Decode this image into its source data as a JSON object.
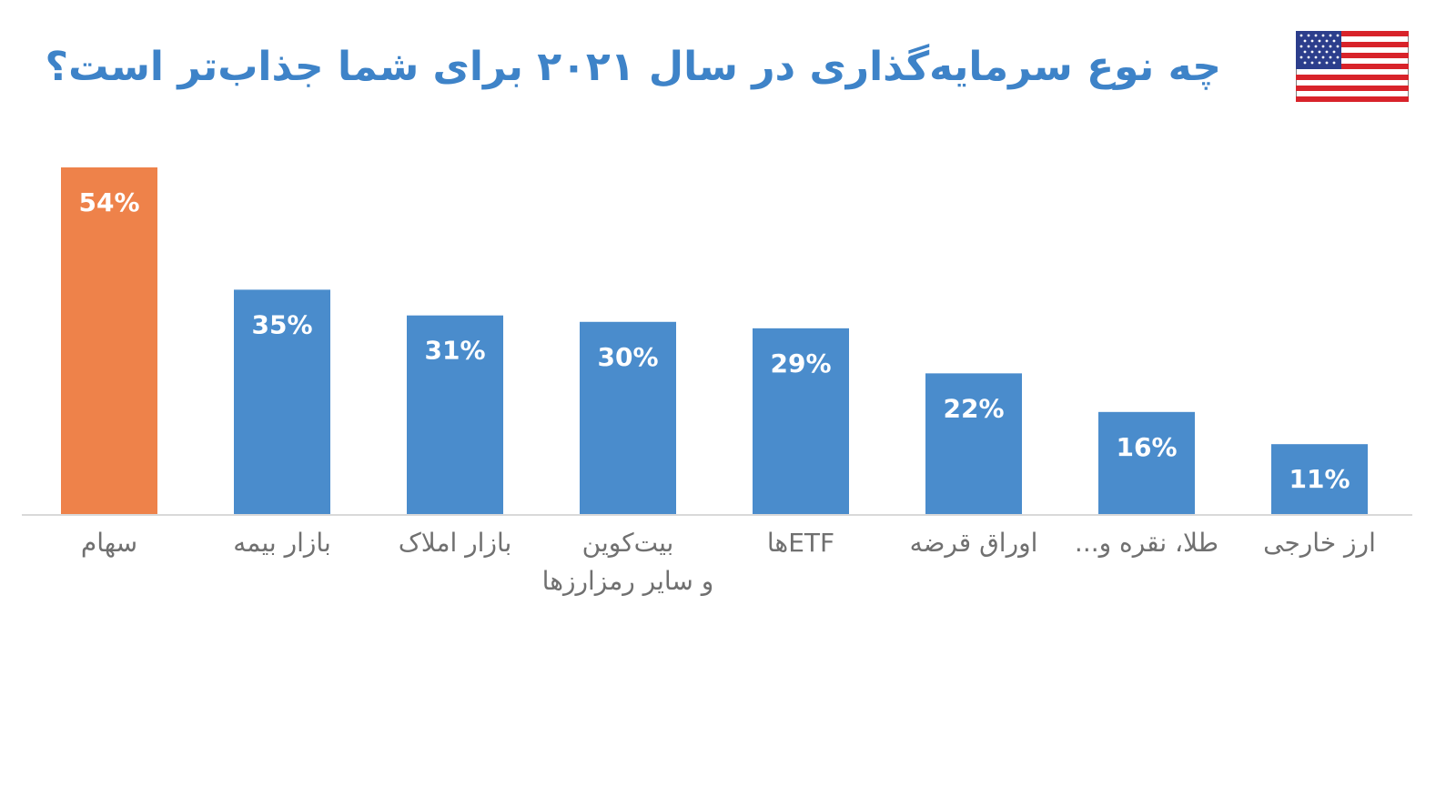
{
  "header": {
    "title": "چه نوع سرمایه‌گذاری در سال ۲۰۲۱ برای شما جذاب‌تر است؟",
    "flag_icon": "us-flag-icon"
  },
  "colors": {
    "highlight": "#ee824a",
    "bar": "#4a8ccc",
    "title": "#3e83c8",
    "label": "#707070",
    "axis": "#d9d9d9"
  },
  "chart_data": {
    "type": "bar",
    "title": "چه نوع سرمایه‌گذاری در سال ۲۰۲۱ برای شما جذاب‌تر است؟",
    "xlabel": "",
    "ylabel": "",
    "ylim": [
      0,
      54
    ],
    "grid": false,
    "legend": "none",
    "value_suffix": "%",
    "highlight_index": 0,
    "categories": [
      [
        "سهام"
      ],
      [
        "بازار بیمه"
      ],
      [
        "بازار املاک"
      ],
      [
        "بیت‌کوین",
        "و سایر رمزارزها"
      ],
      [
        "ETFها"
      ],
      [
        "اوراق قرضه"
      ],
      [
        "طلا، نقره و..."
      ],
      [
        "ارز خارجی"
      ]
    ],
    "values": [
      54,
      35,
      31,
      30,
      29,
      22,
      16,
      11
    ]
  }
}
